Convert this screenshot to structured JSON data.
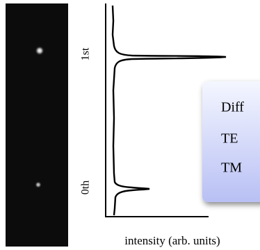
{
  "labels": {
    "first_order": "1st",
    "zero_order": "0th",
    "x_axis": "intensity (arb. units)"
  },
  "box": {
    "lines": [
      "Diff",
      "TE",
      "TM"
    ]
  }
}
